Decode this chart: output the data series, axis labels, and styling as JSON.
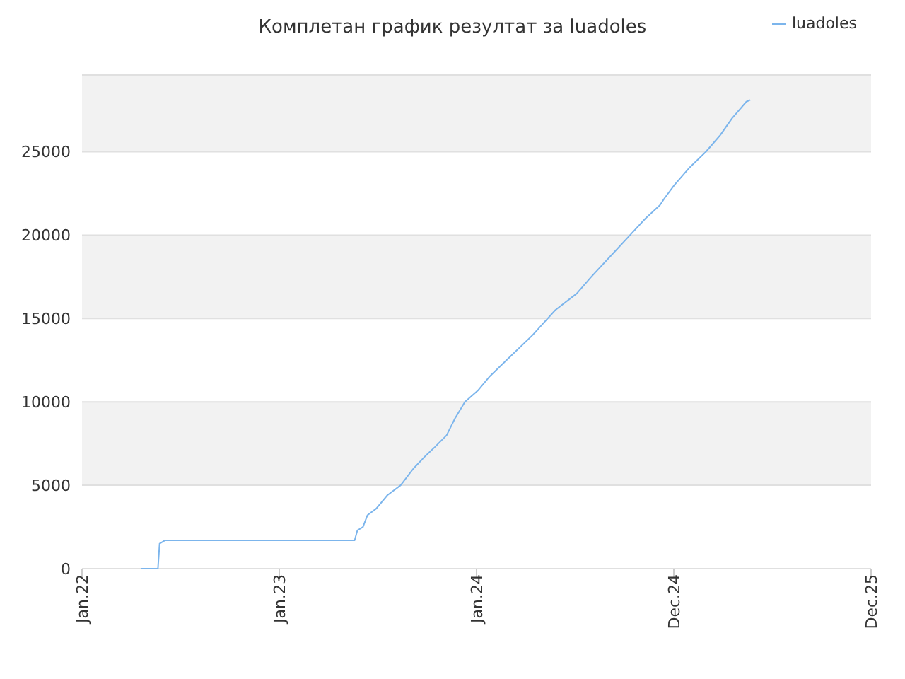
{
  "chart_data": {
    "type": "line",
    "title": "Комплетан график резултат за luadoles",
    "x": [
      "2022-05-08",
      "2022-06-08",
      "2022-06-11",
      "2022-06-21",
      "2023-05-29",
      "2023-06-03",
      "2023-06-13",
      "2023-06-21",
      "2023-07-07",
      "2023-07-27",
      "2023-08-20",
      "2023-09-12",
      "2023-10-05",
      "2023-10-21",
      "2023-11-11",
      "2023-11-26",
      "2023-12-14",
      "2024-01-07",
      "2024-01-27",
      "2024-02-27",
      "2024-04-14",
      "2024-05-25",
      "2024-07-03",
      "2024-07-29",
      "2024-09-09",
      "2024-10-07",
      "2024-11-04",
      "2024-11-30",
      "2024-12-08",
      "2024-12-26",
      "2025-01-21",
      "2025-02-21",
      "2025-03-19",
      "2025-04-09",
      "2025-05-05",
      "2025-05-12"
    ],
    "series": [
      {
        "name": "luadoles",
        "color": "#7cb5ec",
        "values": [
          0,
          0,
          1500,
          1700,
          1700,
          2300,
          2500,
          3200,
          3600,
          4400,
          5000,
          6000,
          6800,
          7300,
          8000,
          9000,
          10000,
          10700,
          11500,
          12500,
          14000,
          15500,
          16500,
          17500,
          19000,
          20000,
          21000,
          21800,
          22200,
          23000,
          24000,
          25000,
          26000,
          27000,
          28000,
          28100
        ]
      }
    ],
    "xlim": [
      "2022-01-22",
      "2025-12-16"
    ],
    "xticks": [
      {
        "value": "2022-01-22",
        "label": "Jan.22"
      },
      {
        "value": "2023-01-13",
        "label": "Jan.23"
      },
      {
        "value": "2024-01-04",
        "label": "Jan.24"
      },
      {
        "value": "2024-12-25",
        "label": "Dec.24"
      },
      {
        "value": "2025-12-16",
        "label": "Dec.25"
      }
    ],
    "ylim": [
      0,
      29600
    ],
    "yticks": [
      0,
      5000,
      10000,
      15000,
      20000,
      25000
    ],
    "grid": "y",
    "legend": "top right",
    "marker": "none",
    "line_style": "solid"
  }
}
